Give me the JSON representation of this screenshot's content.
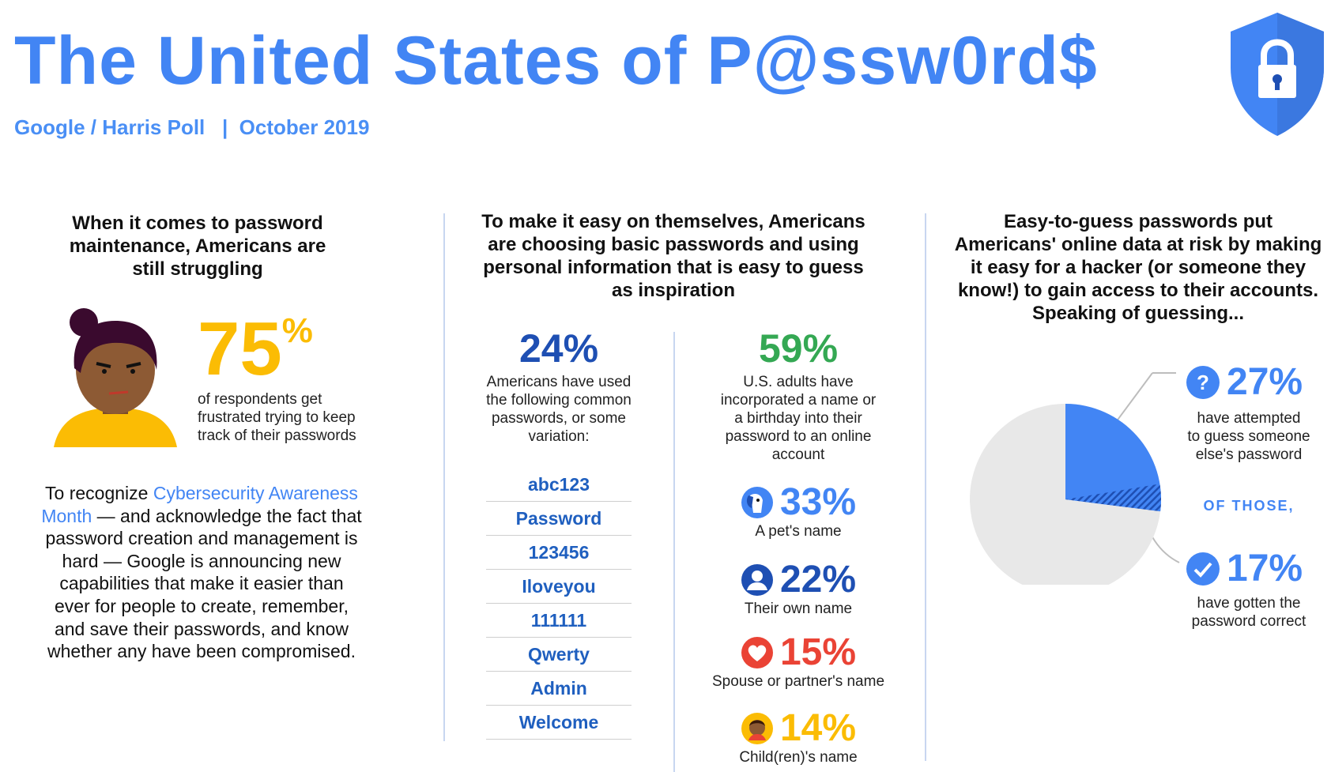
{
  "header": {
    "title": "The United States of P@ssw0rd$",
    "subtitle": "Google / Harris Poll   |  October 2019",
    "shield_icon": "shield-lock-icon"
  },
  "left": {
    "heading_lines": [
      "When it comes to password",
      "maintenance, Americans are",
      "still struggling"
    ],
    "stat_value": "75",
    "stat_unit": "%",
    "stat_lines": [
      "of respondents get",
      "frustrated trying to keep",
      "track of their passwords"
    ],
    "body_pre": "To recognize ",
    "body_link": "Cybersecurity Awareness Month",
    "body_post": " — and acknowledge the fact that password creation and management is hard — Google is announcing new capabilities that make it easier than ever for people to create, remember, and save their passwords, and know whether any have been compromised."
  },
  "middle": {
    "heading_lines": [
      "To make it easy on themselves, Americans",
      "are choosing basic passwords and using",
      "personal information that is easy to guess",
      "as inspiration"
    ],
    "common_pct": "24%",
    "common_lines": [
      "Americans have used",
      "the following common",
      "passwords, or some",
      "variation:"
    ],
    "passwords": [
      "abc123",
      "Password",
      "123456",
      "Iloveyou",
      "111111",
      "Qwerty",
      "Admin",
      "Welcome"
    ],
    "personal_pct": "59%",
    "personal_lines": [
      "U.S. adults have",
      "incorporated a name or",
      "a birthday into their",
      "password to an online",
      "account"
    ],
    "breakdown": [
      {
        "icon": "dog-icon",
        "value": "33%",
        "label": "A pet's name",
        "color": "#4285f4"
      },
      {
        "icon": "person-icon",
        "value": "22%",
        "label": "Their own name",
        "color": "#1e4fb3"
      },
      {
        "icon": "heart-icon",
        "value": "15%",
        "label": "Spouse or partner's name",
        "color": "#ea4335"
      },
      {
        "icon": "child-icon",
        "value": "14%",
        "label": "Child(ren)'s name",
        "color": "#fbbc04"
      }
    ]
  },
  "right": {
    "heading_lines": [
      "Easy-to-guess passwords put",
      "Americans' online data at risk by making",
      "it easy for a hacker (or someone they",
      "know!) to gain access to their accounts.",
      "Speaking of guessing..."
    ],
    "attempted_pct": "27%",
    "attempted_lines": [
      "have attempted",
      "to guess someone",
      "else's password"
    ],
    "of_those": "OF THOSE,",
    "correct_pct": "17%",
    "correct_lines": [
      "have gotten the",
      "password correct"
    ],
    "pie": {
      "attempted": 27,
      "correct_share": 17
    }
  }
}
